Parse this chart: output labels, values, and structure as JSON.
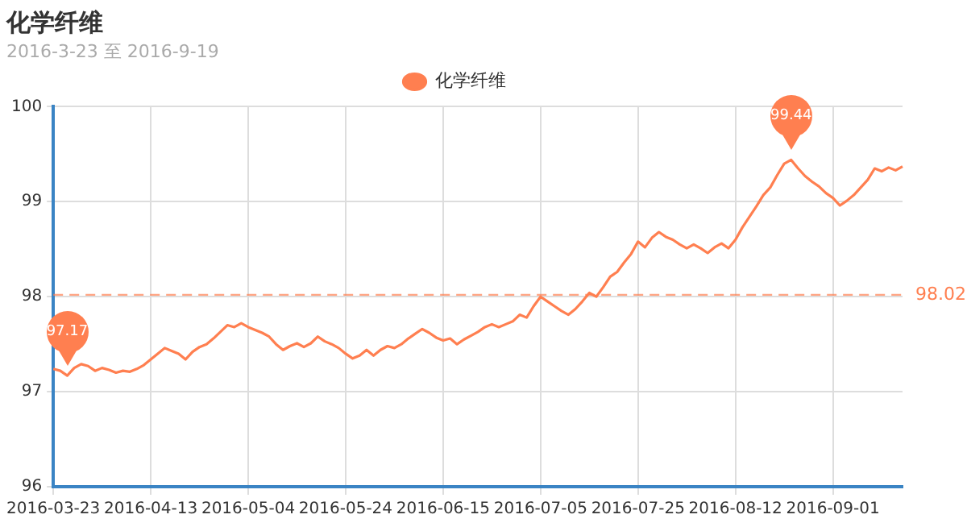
{
  "chart_data": {
    "type": "line",
    "title": "化学纤维",
    "subtitle": "2016-3-23 至 2016-9-19",
    "categories": [
      "2016-03-23",
      null,
      null,
      null,
      null,
      null,
      null,
      null,
      null,
      null,
      null,
      null,
      null,
      null,
      "2016-04-13",
      null,
      null,
      null,
      null,
      null,
      null,
      null,
      null,
      null,
      null,
      null,
      null,
      null,
      "2016-05-04",
      null,
      null,
      null,
      null,
      null,
      null,
      null,
      null,
      null,
      null,
      null,
      null,
      null,
      "2016-05-24",
      null,
      null,
      null,
      null,
      null,
      null,
      null,
      null,
      null,
      null,
      null,
      null,
      null,
      "2016-06-15",
      null,
      null,
      null,
      null,
      null,
      null,
      null,
      null,
      null,
      null,
      null,
      null,
      null,
      "2016-07-05",
      null,
      null,
      null,
      null,
      null,
      null,
      null,
      null,
      null,
      null,
      null,
      null,
      null,
      "2016-07-25",
      null,
      null,
      null,
      null,
      null,
      null,
      null,
      null,
      null,
      null,
      null,
      null,
      null,
      "2016-08-12",
      null,
      null,
      null,
      null,
      null,
      null,
      null,
      null,
      null,
      null,
      null,
      null,
      null,
      "2016-09-01",
      null,
      null,
      null,
      null,
      null,
      null,
      null,
      null,
      null,
      null
    ],
    "series": [
      {
        "name": "化学纤维",
        "color": "#ff7f50",
        "values": [
          97.24,
          97.22,
          97.17,
          97.25,
          97.29,
          97.27,
          97.22,
          97.25,
          97.23,
          97.2,
          97.22,
          97.21,
          97.24,
          97.28,
          97.34,
          97.4,
          97.46,
          97.43,
          97.4,
          97.34,
          97.42,
          97.47,
          97.5,
          97.56,
          97.63,
          97.7,
          97.68,
          97.72,
          97.68,
          97.65,
          97.62,
          97.58,
          97.5,
          97.44,
          97.48,
          97.51,
          97.47,
          97.51,
          97.58,
          97.53,
          97.5,
          97.46,
          97.4,
          97.35,
          97.38,
          97.44,
          97.38,
          97.44,
          97.48,
          97.46,
          97.5,
          97.56,
          97.61,
          97.66,
          97.62,
          97.57,
          97.54,
          97.56,
          97.5,
          97.55,
          97.59,
          97.63,
          97.68,
          97.71,
          97.68,
          97.71,
          97.74,
          97.81,
          97.78,
          97.9,
          98.0,
          97.95,
          97.9,
          97.85,
          97.81,
          97.87,
          97.95,
          98.04,
          98.0,
          98.1,
          98.21,
          98.26,
          98.36,
          98.45,
          98.58,
          98.52,
          98.62,
          98.68,
          98.63,
          98.6,
          98.55,
          98.51,
          98.55,
          98.51,
          98.46,
          98.52,
          98.56,
          98.51,
          98.6,
          98.73,
          98.84,
          98.95,
          99.07,
          99.15,
          99.28,
          99.4,
          99.44,
          99.35,
          99.27,
          99.21,
          99.16,
          99.09,
          99.04,
          98.96,
          99.01,
          99.07,
          99.15,
          99.23,
          99.35,
          99.32,
          99.36,
          99.33,
          99.37
        ]
      }
    ],
    "ylim": [
      96,
      100
    ],
    "yticks": [
      96,
      97,
      98,
      99,
      100
    ],
    "grid": true,
    "legend": "top",
    "marker": "none",
    "line_style": "solid",
    "ref_lines": [
      {
        "axis": "y",
        "value": 98.02,
        "label": "98.02",
        "color": "#ff7f50",
        "line_style": "dashed"
      }
    ],
    "annotations": [
      {
        "text": "99.44",
        "y": 99.44
      },
      {
        "text": "97.17",
        "y": 97.17
      }
    ]
  }
}
